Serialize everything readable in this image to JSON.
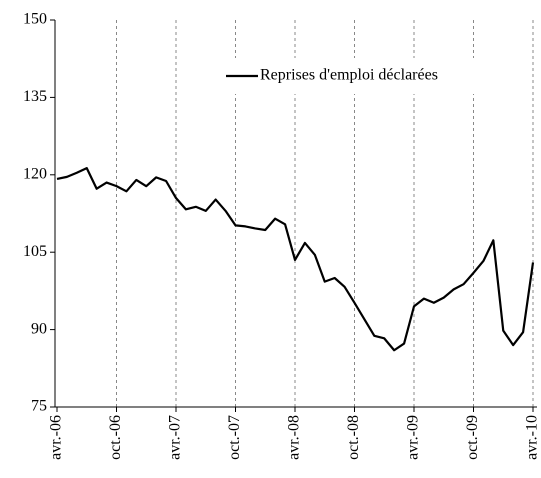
{
  "chart_data": {
    "type": "line",
    "categories": [
      "avr.-06",
      null,
      null,
      null,
      null,
      null,
      "oct.-06",
      null,
      null,
      null,
      null,
      null,
      "avr.-07",
      null,
      null,
      null,
      null,
      null,
      "oct.-07",
      null,
      null,
      null,
      null,
      null,
      "avr.-08",
      null,
      null,
      null,
      null,
      null,
      "oct.-08",
      null,
      null,
      null,
      null,
      null,
      "avr.-09",
      null,
      null,
      null,
      null,
      null,
      "oct.-09",
      null,
      null,
      null,
      null,
      null,
      "avr.-10"
    ],
    "series": [
      {
        "name": "Reprises d'emploi déclarées",
        "color": "#000000",
        "values": [
          119.2,
          119.6,
          120.4,
          121.3,
          117.3,
          118.5,
          117.8,
          116.8,
          119,
          117.8,
          119.5,
          118.8,
          115.5,
          113.3,
          113.8,
          113,
          115.2,
          113,
          110.2,
          110,
          109.6,
          109.3,
          111.5,
          110.4,
          103.5,
          106.8,
          104.5,
          99.3,
          100,
          98.3,
          95.2,
          92,
          88.8,
          88.3,
          86,
          87.3,
          94.5,
          96,
          95.2,
          96.2,
          97.8,
          98.8,
          101,
          103.3,
          107.3,
          89.8,
          87,
          89.5,
          103
        ]
      }
    ],
    "ylim": [
      75,
      150
    ],
    "yticks": [
      75,
      90,
      105,
      120,
      135,
      150
    ],
    "legend": "upper right",
    "grid": true
  }
}
